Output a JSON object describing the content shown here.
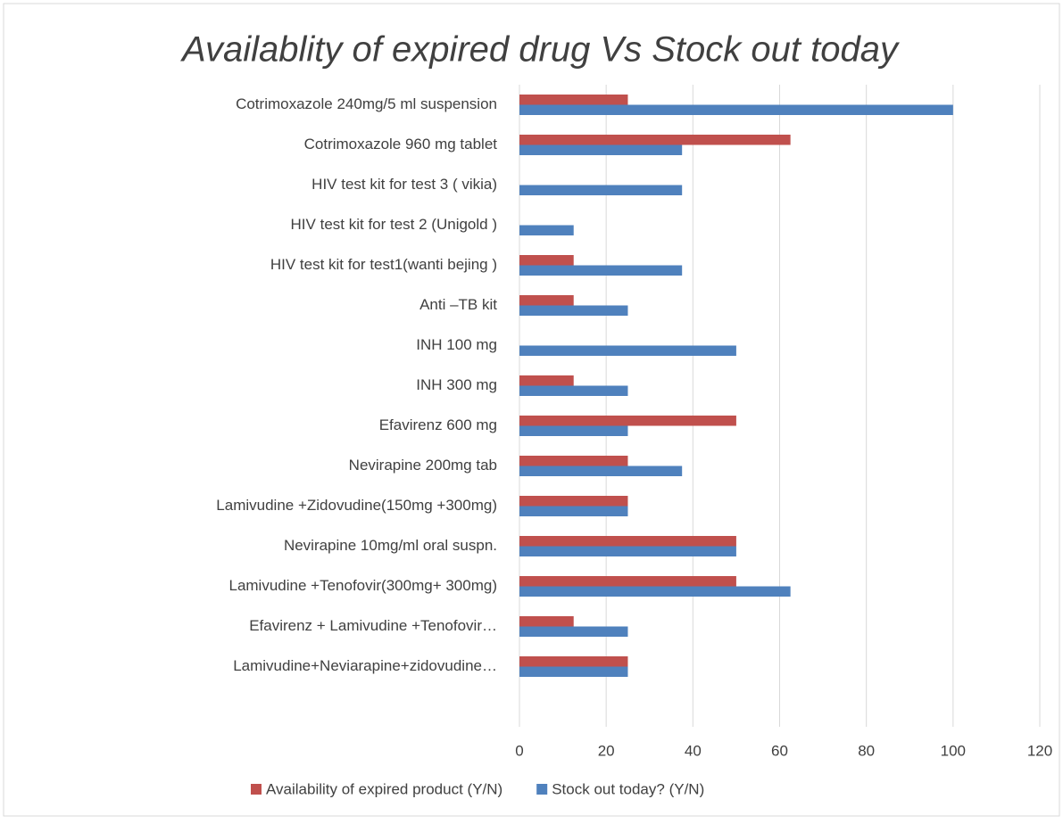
{
  "chart_data": {
    "type": "bar",
    "orientation": "horizontal",
    "title": "Availablity of expired drug Vs Stock out today",
    "categories": [
      "Cotrimoxazole 240mg/5 ml suspension",
      "Cotrimoxazole 960 mg tablet ",
      "HIV test kit for test 3 ( vikia)",
      "HIV test kit for test 2 (Unigold  )",
      "HIV test kit for test1(wanti bejing )",
      "Anti –TB kit",
      "INH 100 mg ",
      "INH  300 mg ",
      "Efavirenz 600 mg ",
      "Nevirapine 200mg tab",
      "Lamivudine +Zidovudine(150mg +300mg)",
      "Nevirapine  10mg/ml oral suspn.",
      "Lamivudine +Tenofovir(300mg+ 300mg)",
      "Efavirenz + Lamivudine +Tenofovir…",
      "Lamivudine+Neviarapine+zidovudine…",
      null
    ],
    "series": [
      {
        "name": "Availability of expired product (Y/N)",
        "color": "#c0504d",
        "values": [
          25,
          62.5,
          0,
          0,
          12.5,
          12.5,
          0,
          12.5,
          50,
          25,
          25,
          50,
          50,
          12.5,
          25,
          null
        ]
      },
      {
        "name": "Stock out today? (Y/N)",
        "color": "#4f81bd",
        "values": [
          100,
          37.5,
          37.5,
          12.5,
          37.5,
          25,
          50,
          25,
          25,
          37.5,
          25,
          50,
          62.5,
          25,
          25,
          null
        ]
      }
    ],
    "xlim": [
      0,
      120
    ],
    "xticks": [
      0,
      20,
      40,
      60,
      80,
      100,
      120
    ],
    "grid": true,
    "legend": "bottom"
  }
}
